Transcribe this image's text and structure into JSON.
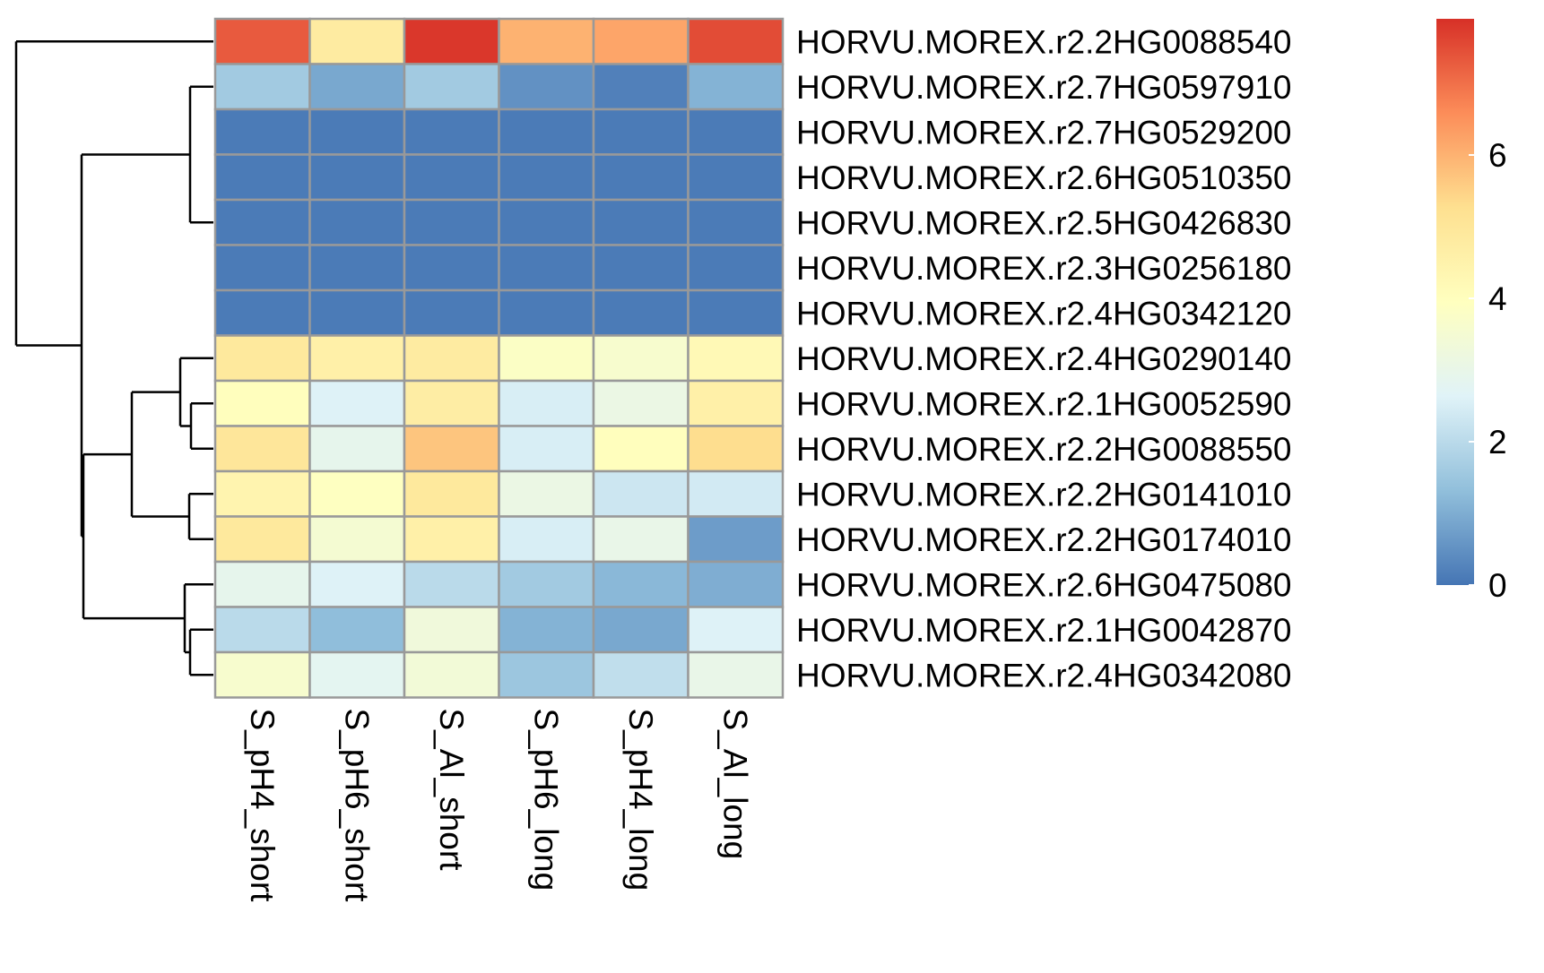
{
  "chart_data": {
    "type": "heatmap",
    "columns": [
      "S_pH4_short",
      "S_pH6_short",
      "S_Al_short",
      "S_pH6_long",
      "S_pH4_long",
      "S_Al_long"
    ],
    "rows": [
      "HORVU.MOREX.r2.2HG0088540",
      "HORVU.MOREX.r2.7HG0597910",
      "HORVU.MOREX.r2.7HG0529200",
      "HORVU.MOREX.r2.6HG0510350",
      "HORVU.MOREX.r2.5HG0426830",
      "HORVU.MOREX.r2.3HG0256180",
      "HORVU.MOREX.r2.4HG0342120",
      "HORVU.MOREX.r2.4HG0290140",
      "HORVU.MOREX.r2.1HG0052590",
      "HORVU.MOREX.r2.2HG0088550",
      "HORVU.MOREX.r2.2HG0141010",
      "HORVU.MOREX.r2.2HG0174010",
      "HORVU.MOREX.r2.6HG0475080",
      "HORVU.MOREX.r2.1HG0042870",
      "HORVU.MOREX.r2.4HG0342080"
    ],
    "values": [
      [
        7.3,
        4.8,
        7.8,
        6.0,
        6.2,
        7.5
      ],
      [
        1.6,
        0.9,
        1.6,
        0.5,
        0.2,
        1.1
      ],
      [
        0.1,
        0.1,
        0.1,
        0.1,
        0.1,
        0.1
      ],
      [
        0.1,
        0.1,
        0.1,
        0.1,
        0.1,
        0.1
      ],
      [
        0.1,
        0.1,
        0.1,
        0.1,
        0.1,
        0.1
      ],
      [
        0.1,
        0.1,
        0.1,
        0.1,
        0.1,
        0.1
      ],
      [
        0.1,
        0.1,
        0.1,
        0.1,
        0.1,
        0.1
      ],
      [
        4.9,
        4.6,
        4.8,
        3.8,
        3.6,
        4.2
      ],
      [
        4.0,
        2.6,
        4.7,
        2.5,
        3.1,
        4.6
      ],
      [
        5.0,
        2.9,
        5.7,
        2.5,
        4.0,
        5.3
      ],
      [
        4.4,
        3.9,
        4.9,
        3.1,
        2.3,
        2.4
      ],
      [
        4.9,
        3.5,
        4.6,
        2.5,
        3.0,
        0.7
      ],
      [
        2.9,
        2.6,
        2.0,
        1.6,
        1.2,
        1.0
      ],
      [
        2.0,
        1.3,
        3.3,
        1.1,
        0.9,
        2.6
      ],
      [
        3.6,
        2.8,
        3.4,
        1.5,
        2.1,
        3.0
      ]
    ],
    "colorbar": {
      "min": 0,
      "max": 7.9,
      "ticks": [
        0,
        2,
        4,
        6
      ],
      "stops": [
        "#4575b4",
        "#91bfdb",
        "#e0f3f8",
        "#ffffbf",
        "#fee090",
        "#fc8d59",
        "#d73027"
      ]
    },
    "cell_border_color": "#999999",
    "row_dendrogram": true,
    "title": "",
    "xlabel": "",
    "ylabel": ""
  }
}
